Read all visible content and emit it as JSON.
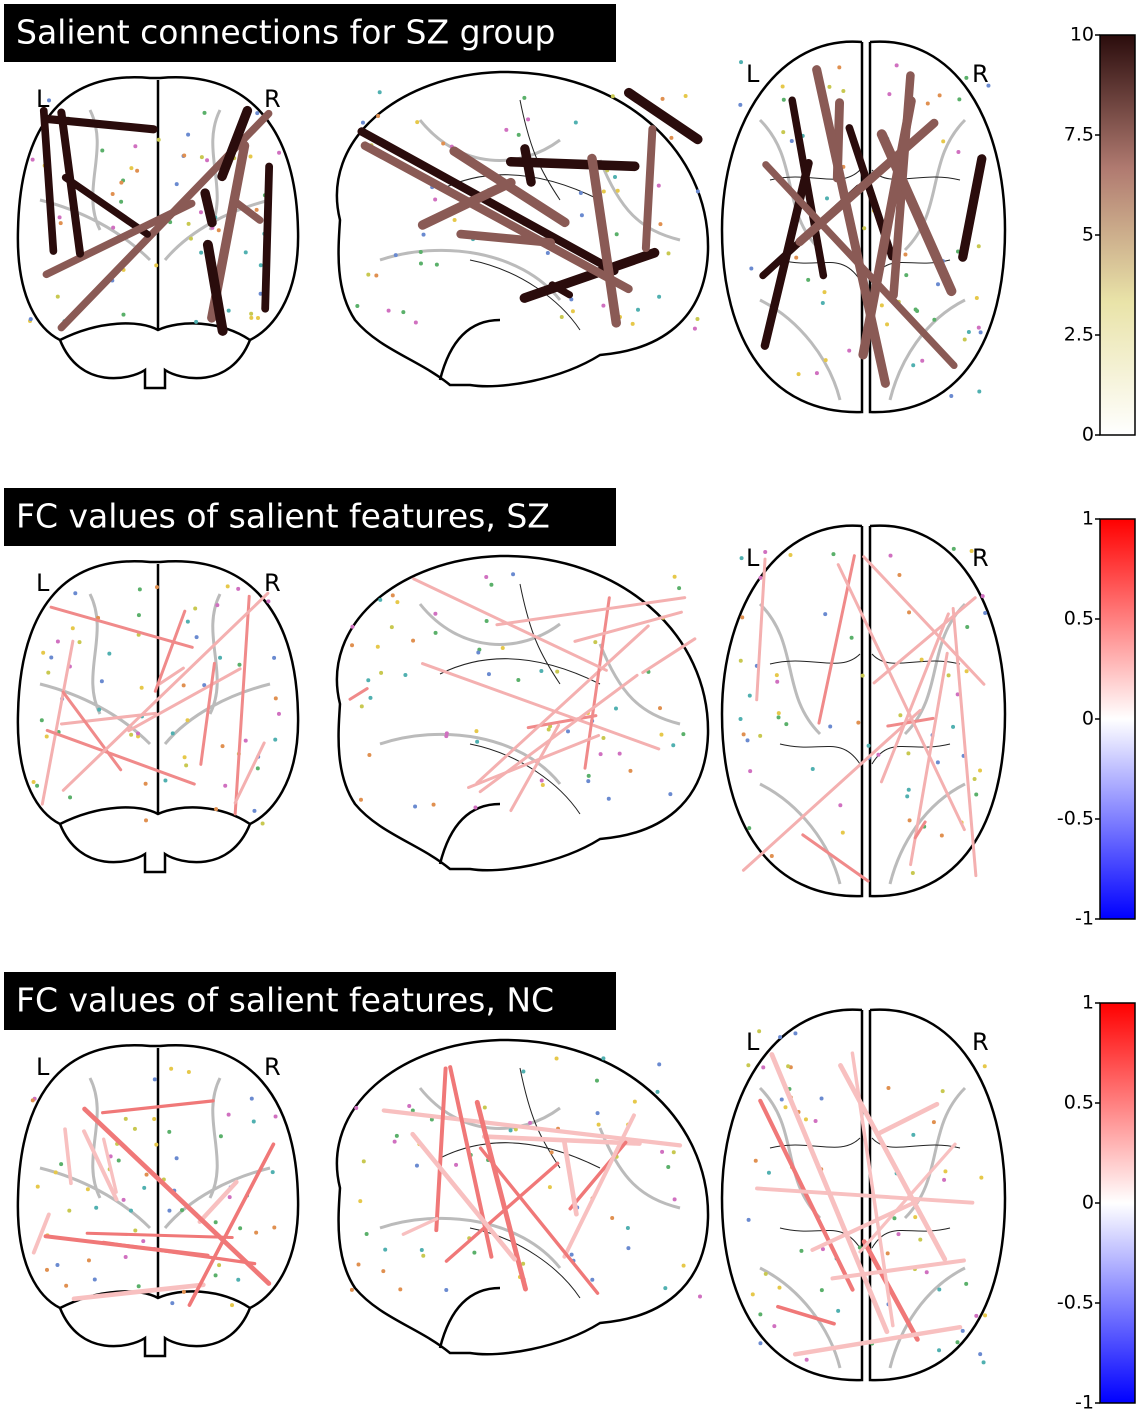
{
  "panels": [
    {
      "title": "Salient connections for SZ group",
      "coronal_left": "L",
      "coronal_right": "R",
      "axial_left": "L",
      "axial_right": "R",
      "colorbar": {
        "lim": [
          0,
          10
        ],
        "ticks": [
          0,
          2.5,
          5,
          7.5,
          10
        ],
        "colors": [
          "#ffffff",
          "#e9e3a8",
          "#b07a70",
          "#2a0c0c"
        ]
      }
    },
    {
      "title": "FC values of salient features, SZ",
      "coronal_left": "L",
      "coronal_right": "R",
      "axial_left": "L",
      "axial_right": "R",
      "colorbar": {
        "lim": [
          -1,
          1
        ],
        "ticks": [
          -1,
          -0.5,
          0,
          0.5,
          1
        ],
        "colors": [
          "#0000ff",
          "#ffffff",
          "#ff0000"
        ]
      }
    },
    {
      "title": "FC values of salient features, NC",
      "coronal_left": "L",
      "coronal_right": "R",
      "axial_left": "L",
      "axial_right": "R",
      "colorbar": {
        "lim": [
          -1,
          1
        ],
        "ticks": [
          -1,
          -0.5,
          0,
          0.5,
          1
        ],
        "colors": [
          "#0000ff",
          "#ffffff",
          "#ff0000"
        ]
      }
    }
  ]
}
